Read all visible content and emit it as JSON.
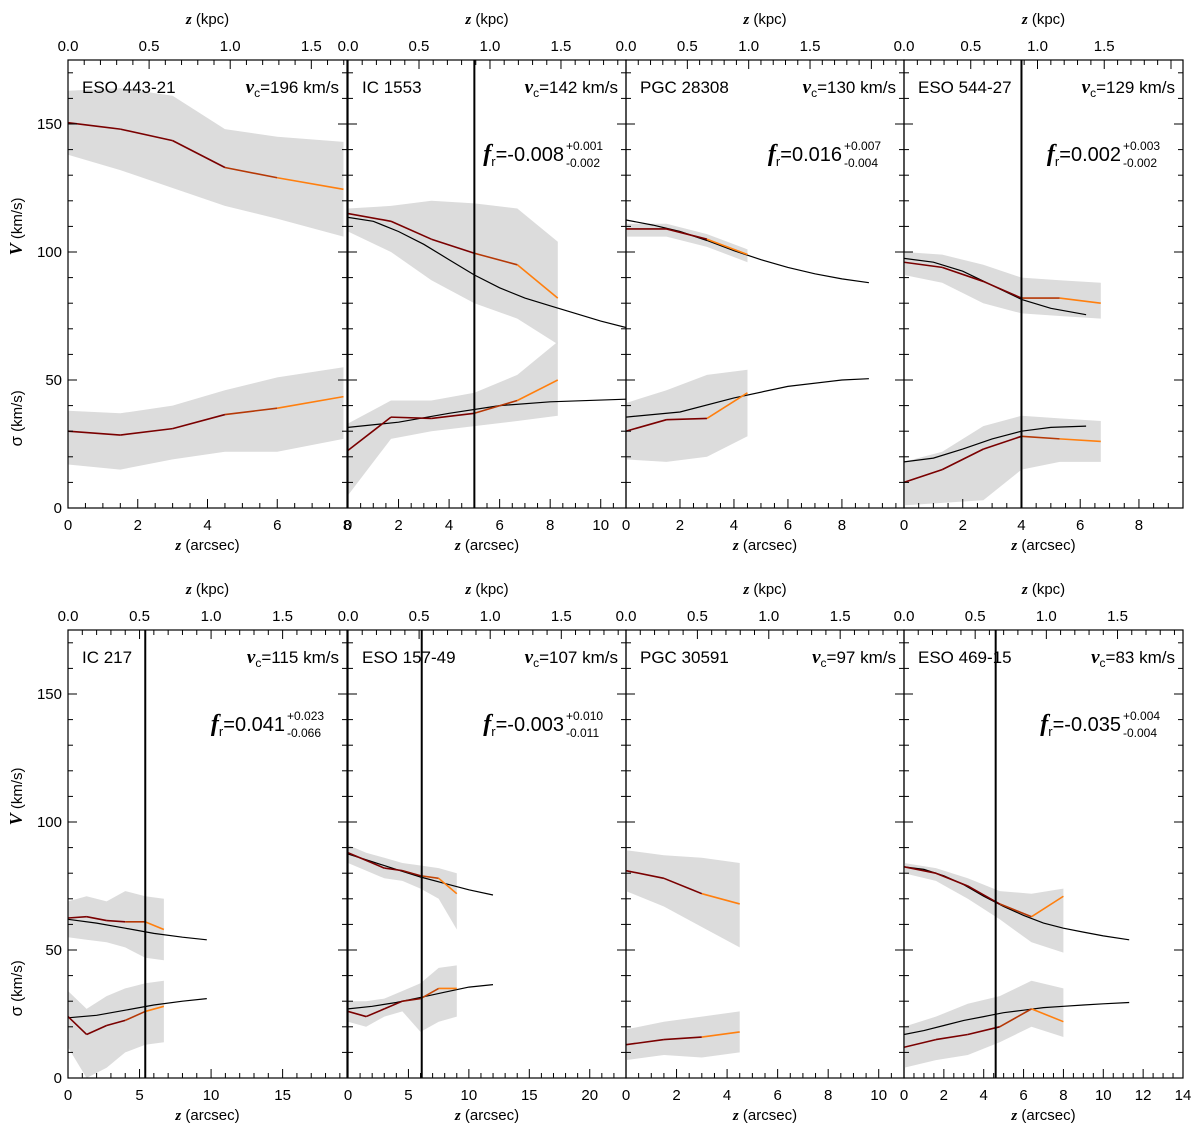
{
  "figure": {
    "top_axis_label": "z (kpc)",
    "bottom_axis_label": "z (arcsec)",
    "ylabel_v": "V",
    "ylabel_sigma": "σ",
    "ylabel_unit": "(km/s)",
    "vc_prefix": "v",
    "vc_sub": "c",
    "fr_prefix": "f",
    "fr_sub": "r"
  },
  "colors": {
    "band": "#dcdcdc",
    "dark": "#7a0000",
    "orange": "#ff7f0e",
    "model": "#000000"
  },
  "chart_data": [
    {
      "type": "line",
      "name": "ESO 443-21",
      "vc": "=196 km/s",
      "fr": null,
      "x_ticks": [
        0,
        2,
        4,
        6,
        8
      ],
      "x_tick_labels": [
        "0",
        "2",
        "4",
        "6",
        "8"
      ],
      "xlim": [
        0,
        8
      ],
      "kpc_per_arcsec": 0.215,
      "kpc_ticks": [
        0.0,
        0.5,
        1.0,
        1.5
      ],
      "kpc_tick_labels": [
        "0.0",
        "0.5",
        "1.0",
        "1.5"
      ],
      "ylim": [
        0,
        175
      ],
      "y_ticks": [
        0,
        50,
        100,
        150
      ],
      "y_tick_labels": [
        "0",
        "50",
        "100",
        "150"
      ],
      "vline": null,
      "V": {
        "x": [
          0,
          1.5,
          3,
          4.5,
          6,
          7.9
        ],
        "y": [
          150.5,
          148,
          143.5,
          133,
          129,
          124.5
        ],
        "upper": [
          163,
          164,
          161,
          148,
          145,
          143
        ],
        "lower": [
          138,
          132,
          125,
          118,
          113,
          106
        ]
      },
      "sigma": {
        "x": [
          0,
          1.5,
          3,
          4.5,
          6,
          7.9
        ],
        "y": [
          30,
          28.5,
          31,
          36.5,
          39,
          43.5
        ],
        "upper": [
          38,
          37,
          40,
          46,
          51,
          55
        ],
        "lower": [
          17,
          15,
          19,
          22,
          22,
          27
        ]
      },
      "model_V": null,
      "model_sigma": null
    },
    {
      "type": "line",
      "name": "IC 1553",
      "vc": "=142 km/s",
      "fr": {
        "value": "=-0.008",
        "sup": "+0.001",
        "sub": "-0.002"
      },
      "x_ticks": [
        0,
        2,
        4,
        6,
        8,
        10
      ],
      "x_tick_labels": [
        "0",
        "2",
        "4",
        "6",
        "8",
        "10"
      ],
      "xlim": [
        0,
        11
      ],
      "kpc_per_arcsec": 0.178,
      "kpc_ticks": [
        0.0,
        0.5,
        1.0,
        1.5
      ],
      "kpc_tick_labels": [
        "0.0",
        "0.5",
        "1.0",
        "1.5"
      ],
      "ylim": [
        0,
        175
      ],
      "y_ticks": [
        0,
        50,
        100,
        150
      ],
      "y_tick_labels": [
        "0",
        "50",
        "100",
        "150"
      ],
      "vline": 5.0,
      "V": {
        "x": [
          0,
          1.7,
          3.3,
          5,
          6.7,
          8.3
        ],
        "y": [
          115,
          112,
          105,
          99.5,
          95,
          82
        ],
        "upper": [
          117,
          118,
          120,
          119,
          117,
          104
        ],
        "lower": [
          108,
          100,
          89,
          80,
          74,
          64
        ]
      },
      "sigma": {
        "x": [
          0,
          1.7,
          3.3,
          5,
          6.7,
          8.3
        ],
        "y": [
          22.5,
          35.5,
          35,
          37,
          42,
          50
        ],
        "upper": [
          33,
          42,
          42,
          45,
          52,
          65
        ],
        "lower": [
          5,
          27,
          30,
          32,
          34,
          36
        ]
      },
      "model_V": {
        "x": [
          0,
          1,
          2,
          3,
          4,
          5,
          6,
          7,
          8,
          9,
          10,
          11
        ],
        "y": [
          113.5,
          112,
          108,
          103,
          97,
          91,
          86,
          82,
          79,
          76,
          73,
          70.5
        ]
      },
      "model_sigma": {
        "x": [
          0,
          2,
          4,
          6,
          8,
          11
        ],
        "y": [
          31.5,
          33.5,
          37,
          40,
          41.5,
          42.5
        ]
      }
    },
    {
      "type": "line",
      "name": "PGC 28308",
      "vc": "=130 km/s",
      "fr": {
        "value": "=0.016",
        "sup": "+0.007",
        "sub": "-0.004"
      },
      "x_ticks": [
        0,
        2,
        4,
        6,
        8
      ],
      "x_tick_labels": [
        "0",
        "2",
        "4",
        "6",
        "8"
      ],
      "xlim": [
        0,
        10.3
      ],
      "kpc_per_arcsec": 0.22,
      "kpc_ticks": [
        0.0,
        0.5,
        1.0,
        1.5
      ],
      "kpc_tick_labels": [
        "0.0",
        "0.5",
        "1.0",
        "1.5"
      ],
      "ylim": [
        0,
        175
      ],
      "y_ticks": [
        0,
        50,
        100,
        150
      ],
      "y_tick_labels": [
        "0",
        "50",
        "100",
        "150"
      ],
      "vline": null,
      "V": {
        "x": [
          0,
          1.5,
          3,
          4.5
        ],
        "y": [
          109,
          109,
          105,
          99
        ],
        "upper": [
          111,
          111,
          107,
          101
        ],
        "lower": [
          106,
          106,
          102,
          96
        ]
      },
      "sigma": {
        "x": [
          0,
          1.5,
          3,
          4.5
        ],
        "y": [
          30,
          34.5,
          35,
          45
        ],
        "upper": [
          41,
          46,
          52,
          54
        ],
        "lower": [
          19,
          18,
          20,
          28
        ]
      },
      "model_V": {
        "x": [
          0,
          1,
          2,
          3,
          4,
          5,
          6,
          7,
          8,
          9
        ],
        "y": [
          112.5,
          110.5,
          108,
          104.5,
          100.5,
          97,
          94,
          91.5,
          89.5,
          88
        ]
      },
      "model_sigma": {
        "x": [
          0,
          2,
          4,
          6,
          8,
          9
        ],
        "y": [
          35.5,
          37.5,
          43,
          47.5,
          50,
          50.5
        ]
      }
    },
    {
      "type": "line",
      "name": "ESO 544-27",
      "vc": "=129 km/s",
      "fr": {
        "value": "=0.002",
        "sup": "+0.003",
        "sub": "-0.002"
      },
      "x_ticks": [
        0,
        2,
        4,
        6,
        8
      ],
      "x_tick_labels": [
        "0",
        "2",
        "4",
        "6",
        "8"
      ],
      "xlim": [
        0,
        9.5
      ],
      "kpc_per_arcsec": 0.22,
      "kpc_ticks": [
        0.0,
        0.5,
        1.0,
        1.5
      ],
      "kpc_tick_labels": [
        "0.0",
        "0.5",
        "1.0",
        "1.5"
      ],
      "ylim": [
        0,
        175
      ],
      "y_ticks": [
        0,
        50,
        100,
        150
      ],
      "y_tick_labels": [
        "0",
        "50",
        "100",
        "150"
      ],
      "vline": 4.0,
      "V": {
        "x": [
          0,
          1.3,
          2.7,
          4,
          5.3,
          6.7
        ],
        "y": [
          96,
          94,
          88.5,
          82,
          82,
          80
        ],
        "upper": [
          100,
          99,
          95,
          90,
          89,
          88
        ],
        "lower": [
          91,
          88,
          80,
          76,
          75,
          74
        ]
      },
      "sigma": {
        "x": [
          0,
          1.3,
          2.7,
          4,
          5.3,
          6.7
        ],
        "y": [
          10,
          15,
          23,
          28,
          27,
          26
        ],
        "upper": [
          18,
          22,
          32,
          36,
          35,
          34
        ],
        "lower": [
          1,
          2,
          3,
          15,
          18,
          18
        ]
      },
      "model_V": {
        "x": [
          0,
          1,
          2,
          3,
          4,
          5,
          6.2
        ],
        "y": [
          97.5,
          96,
          92.5,
          87,
          81.5,
          78,
          75.5
        ]
      },
      "model_sigma": {
        "x": [
          0,
          1,
          2,
          3,
          4,
          5,
          6.2
        ],
        "y": [
          18,
          19.5,
          23,
          27,
          30,
          31.5,
          32
        ]
      }
    },
    {
      "type": "line",
      "name": "IC 217",
      "vc": "=115 km/s",
      "fr": {
        "value": "=0.041",
        "sup": "+0.023",
        "sub": "-0.066"
      },
      "x_ticks": [
        0,
        5,
        10,
        15
      ],
      "x_tick_labels": [
        "0",
        "5",
        "10",
        "15"
      ],
      "xlim": [
        0,
        19.5
      ],
      "kpc_per_arcsec": 0.1,
      "kpc_ticks": [
        0.0,
        0.5,
        1.0,
        1.5
      ],
      "kpc_tick_labels": [
        "0.0",
        "0.5",
        "1.0",
        "1.5"
      ],
      "ylim": [
        0,
        175
      ],
      "y_ticks": [
        0,
        50,
        100,
        150
      ],
      "y_tick_labels": [
        "0",
        "50",
        "100",
        "150"
      ],
      "vline": 5.4,
      "V": {
        "x": [
          0,
          1.3,
          2.7,
          4,
          5.4,
          6.7
        ],
        "y": [
          62.5,
          63,
          61.5,
          61,
          61,
          58
        ],
        "upper": [
          69,
          71,
          69,
          73,
          71,
          70
        ],
        "lower": [
          55,
          54,
          53,
          51,
          47,
          46
        ]
      },
      "sigma": {
        "x": [
          0,
          1.3,
          2.7,
          4,
          5.4,
          6.7
        ],
        "y": [
          24,
          17,
          20.5,
          22.5,
          26,
          28
        ],
        "upper": [
          34,
          27,
          32,
          35,
          37,
          38
        ],
        "lower": [
          12,
          0,
          4,
          10,
          13,
          14
        ]
      },
      "model_V": {
        "x": [
          0,
          2,
          4,
          6,
          8,
          9.7
        ],
        "y": [
          62,
          60.5,
          58.5,
          56.5,
          55,
          54
        ]
      },
      "model_sigma": {
        "x": [
          0,
          2,
          4,
          6,
          8,
          9.7
        ],
        "y": [
          23.5,
          24.5,
          26.5,
          28.5,
          30,
          31
        ]
      }
    },
    {
      "type": "line",
      "name": "ESO 157-49",
      "vc": "=107 km/s",
      "fr": {
        "value": "=-0.003",
        "sup": "+0.010",
        "sub": "-0.011"
      },
      "x_ticks": [
        0,
        5,
        10,
        15,
        20
      ],
      "x_tick_labels": [
        "0",
        "5",
        "10",
        "15",
        "20"
      ],
      "xlim": [
        0,
        23
      ],
      "kpc_per_arcsec": 0.085,
      "kpc_ticks": [
        0.0,
        0.5,
        1.0,
        1.5
      ],
      "kpc_tick_labels": [
        "0.0",
        "0.5",
        "1.0",
        "1.5"
      ],
      "ylim": [
        0,
        175
      ],
      "y_ticks": [
        0,
        50,
        100,
        150
      ],
      "y_tick_labels": [
        "0",
        "50",
        "100",
        "150"
      ],
      "vline": 6.1,
      "V": {
        "x": [
          0,
          1.5,
          3,
          4.5,
          6,
          7.5,
          9
        ],
        "y": [
          88,
          85,
          82,
          81,
          79,
          78,
          72
        ],
        "upper": [
          91,
          88,
          86,
          84,
          83,
          82,
          80
        ],
        "lower": [
          84,
          81,
          78,
          77,
          74,
          70,
          58
        ]
      },
      "sigma": {
        "x": [
          0,
          1.5,
          3,
          4.5,
          6,
          7.5,
          9
        ],
        "y": [
          26,
          24,
          27,
          30,
          31,
          35,
          35
        ],
        "upper": [
          30,
          30,
          31,
          34,
          37,
          43,
          44
        ],
        "lower": [
          22,
          20,
          24,
          26,
          18,
          22,
          24
        ]
      },
      "model_V": {
        "x": [
          0,
          2,
          4,
          6,
          8,
          10,
          12
        ],
        "y": [
          87.5,
          84.5,
          81.5,
          78.5,
          76,
          73.5,
          71.5
        ]
      },
      "model_sigma": {
        "x": [
          0,
          2,
          4,
          6,
          8,
          10,
          12
        ],
        "y": [
          27,
          28,
          29.5,
          31.5,
          33.5,
          35.5,
          36.5
        ]
      }
    },
    {
      "type": "line",
      "name": "PGC 30591",
      "vc": "=97 km/s",
      "fr": null,
      "x_ticks": [
        0,
        2,
        4,
        6,
        8,
        10
      ],
      "x_tick_labels": [
        "0",
        "2",
        "4",
        "6",
        "8",
        "10"
      ],
      "xlim": [
        0,
        11
      ],
      "kpc_per_arcsec": 0.177,
      "kpc_ticks": [
        0.0,
        0.5,
        1.0,
        1.5
      ],
      "kpc_tick_labels": [
        "0.0",
        "0.5",
        "1.0",
        "1.5"
      ],
      "ylim": [
        0,
        175
      ],
      "y_ticks": [
        0,
        50,
        100,
        150
      ],
      "y_tick_labels": [
        "0",
        "50",
        "100",
        "150"
      ],
      "vline": null,
      "V": {
        "x": [
          0,
          1.5,
          3,
          4.5
        ],
        "y": [
          81,
          78,
          72,
          68
        ],
        "upper": [
          89,
          87,
          86,
          84
        ],
        "lower": [
          73,
          67,
          59,
          51
        ]
      },
      "sigma": {
        "x": [
          0,
          1.5,
          3,
          4.5
        ],
        "y": [
          13,
          15,
          16,
          18
        ],
        "upper": [
          19,
          22,
          24,
          26
        ],
        "lower": [
          7,
          9,
          8,
          10
        ]
      },
      "model_V": null,
      "model_sigma": null
    },
    {
      "type": "line",
      "name": "ESO 469-15",
      "vc": "=83 km/s",
      "fr": {
        "value": "=-0.035",
        "sup": "+0.004",
        "sub": "-0.004"
      },
      "x_ticks": [
        0,
        2,
        4,
        6,
        8,
        10,
        12,
        14
      ],
      "x_tick_labels": [
        "0",
        "2",
        "4",
        "6",
        "8",
        "10",
        "12",
        "14"
      ],
      "xlim": [
        0,
        14
      ],
      "kpc_per_arcsec": 0.14,
      "kpc_ticks": [
        0.0,
        0.5,
        1.0,
        1.5
      ],
      "kpc_tick_labels": [
        "0.0",
        "0.5",
        "1.0",
        "1.5"
      ],
      "ylim": [
        0,
        175
      ],
      "y_ticks": [
        0,
        50,
        100,
        150
      ],
      "y_tick_labels": [
        "0",
        "50",
        "100",
        "150"
      ],
      "vline": 4.6,
      "V": {
        "x": [
          0,
          1.6,
          3.2,
          4.8,
          6.4,
          8
        ],
        "y": [
          82.5,
          80,
          75,
          68,
          63,
          71
        ],
        "upper": [
          84,
          82,
          78,
          73,
          72,
          74
        ],
        "lower": [
          80,
          77,
          70,
          62,
          53,
          49
        ]
      },
      "sigma": {
        "x": [
          0,
          1.6,
          3.2,
          4.8,
          6.4,
          8
        ],
        "y": [
          12,
          15,
          17,
          20,
          27,
          22
        ],
        "upper": [
          20,
          24,
          29,
          32,
          38,
          35
        ],
        "lower": [
          4,
          7,
          9,
          14,
          20,
          16
        ]
      },
      "model_V": {
        "x": [
          0,
          1,
          2,
          3,
          4,
          5,
          6,
          7,
          8,
          9,
          10,
          11.3
        ],
        "y": [
          82.5,
          81.5,
          79,
          75.5,
          71,
          67,
          63.5,
          60.5,
          58.5,
          57,
          55.5,
          54
        ]
      },
      "model_sigma": {
        "x": [
          0,
          1,
          2,
          3,
          4,
          5,
          6,
          7,
          8,
          9,
          10,
          11.3
        ],
        "y": [
          17,
          18.5,
          20.5,
          22.5,
          24,
          25.5,
          26.5,
          27.5,
          28,
          28.5,
          29,
          29.5
        ]
      }
    }
  ]
}
